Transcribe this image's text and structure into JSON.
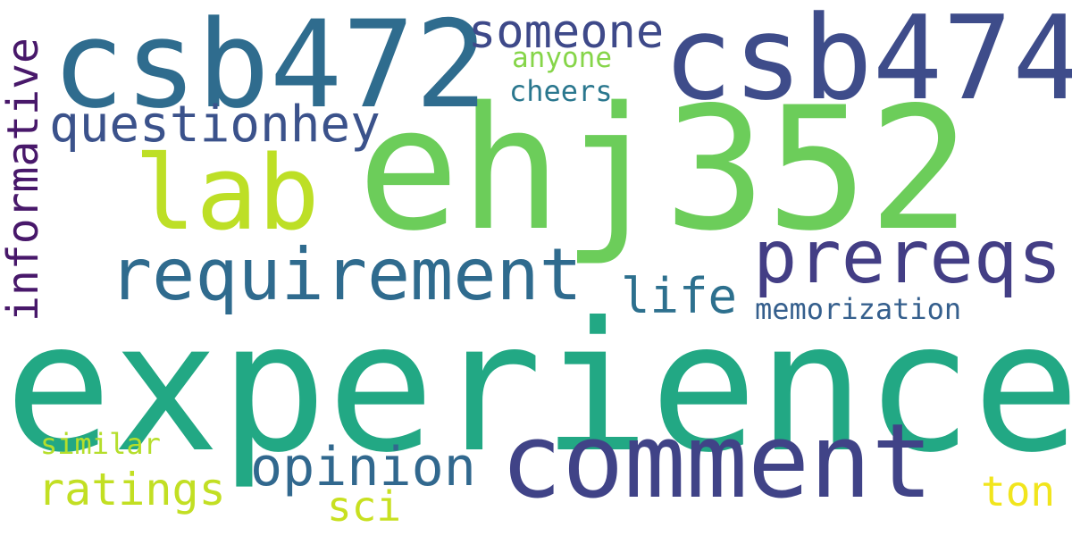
{
  "words": {
    "experience": {
      "text": "experience",
      "color": "#22a884"
    },
    "ehj352": {
      "text": "ehj352",
      "color": "#6ccd5a"
    },
    "csb472": {
      "text": "csb472",
      "color": "#2f6c8e"
    },
    "csb474": {
      "text": "csb474",
      "color": "#3e4c8a"
    },
    "comment": {
      "text": "comment",
      "color": "#404387"
    },
    "lab": {
      "text": "lab",
      "color": "#bddf26"
    },
    "requirement": {
      "text": "requirement",
      "color": "#2f6b8e"
    },
    "prereqs": {
      "text": "prereqs",
      "color": "#433e85"
    },
    "opinion": {
      "text": "opinion",
      "color": "#31688e"
    },
    "questionhey": {
      "text": "questionhey",
      "color": "#3b528b"
    },
    "someone": {
      "text": "someone",
      "color": "#3e4989"
    },
    "ratings": {
      "text": "ratings",
      "color": "#c2df23"
    },
    "life": {
      "text": "life",
      "color": "#2d708e"
    },
    "sci": {
      "text": "sci",
      "color": "#c8e020"
    },
    "ton": {
      "text": "ton",
      "color": "#f1e51d"
    },
    "memorization": {
      "text": "memorization",
      "color": "#355f8d"
    },
    "similar": {
      "text": "similar",
      "color": "#b5de2b"
    },
    "anyone": {
      "text": "anyone",
      "color": "#86d549"
    },
    "cheers": {
      "text": "cheers",
      "color": "#2a778e"
    },
    "informative": {
      "text": "informative",
      "color": "#48186a"
    }
  }
}
